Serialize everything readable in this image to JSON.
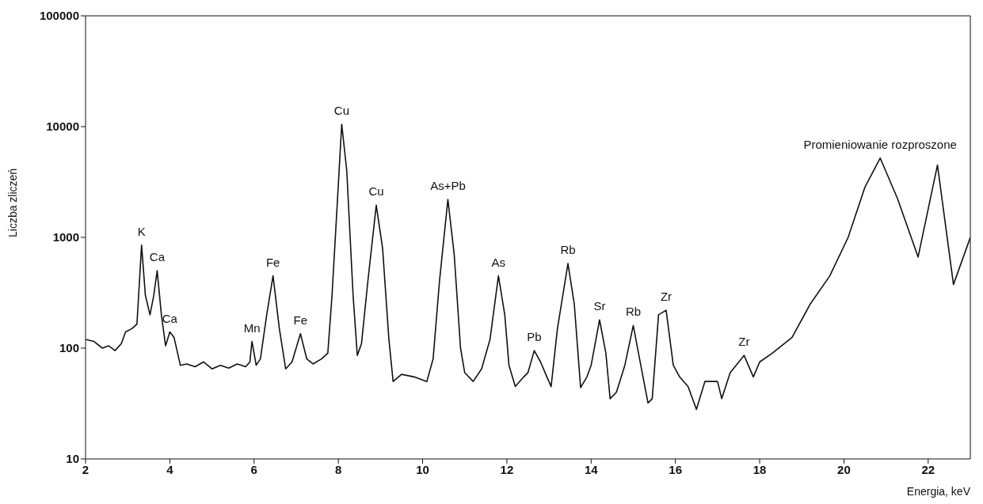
{
  "chart_data": {
    "type": "line",
    "xlabel": "Energia, keV",
    "ylabel": "Liczba zliczeń",
    "log": "y",
    "xlim": [
      2,
      23
    ],
    "xticks": [
      2,
      4,
      6,
      8,
      10,
      12,
      14,
      16,
      18,
      20,
      22
    ],
    "ylim": [
      10,
      100000
    ],
    "yticks": [
      10,
      100,
      1000,
      10000,
      100000
    ],
    "marker": "none",
    "line_style": "solid",
    "series": [
      {
        "color": "#111111",
        "x": [
          2,
          2.2,
          2.4,
          2.55,
          2.7,
          2.85,
          2.95,
          3.1,
          3.22,
          3.33,
          3.42,
          3.53,
          3.62,
          3.7,
          3.8,
          3.9,
          4.0,
          4.1,
          4.25,
          4.4,
          4.6,
          4.8,
          5.0,
          5.2,
          5.4,
          5.6,
          5.8,
          5.9,
          5.95,
          6.05,
          6.15,
          6.3,
          6.45,
          6.6,
          6.75,
          6.9,
          7.1,
          7.25,
          7.4,
          7.6,
          7.75,
          7.85,
          8.0,
          8.08,
          8.2,
          8.35,
          8.45,
          8.55,
          8.7,
          8.9,
          9.05,
          9.2,
          9.3,
          9.5,
          9.8,
          10.1,
          10.25,
          10.4,
          10.6,
          10.75,
          10.9,
          11.0,
          11.2,
          11.4,
          11.6,
          11.8,
          11.95,
          12.05,
          12.2,
          12.4,
          12.5,
          12.65,
          12.8,
          12.95,
          13.05,
          13.2,
          13.45,
          13.6,
          13.75,
          13.9,
          14.0,
          14.2,
          14.35,
          14.45,
          14.6,
          14.8,
          15.0,
          15.15,
          15.35,
          15.45,
          15.6,
          15.78,
          15.95,
          16.1,
          16.3,
          16.5,
          16.7,
          17.0,
          17.1,
          17.3,
          17.63,
          17.85,
          18.0,
          18.3,
          18.77,
          19.2,
          19.66,
          20.1,
          20.5,
          20.86,
          21.27,
          21.76,
          22.22,
          22.6,
          23
        ],
        "values": [
          120,
          115,
          100,
          105,
          95,
          110,
          140,
          150,
          165,
          850,
          300,
          200,
          300,
          500,
          200,
          105,
          140,
          125,
          70,
          72,
          68,
          75,
          65,
          70,
          66,
          72,
          68,
          75,
          115,
          70,
          80,
          200,
          450,
          150,
          65,
          75,
          135,
          80,
          72,
          80,
          90,
          300,
          3000,
          10500,
          4000,
          300,
          86,
          110,
          400,
          1950,
          800,
          120,
          50,
          58,
          55,
          50,
          80,
          400,
          2200,
          700,
          100,
          60,
          50,
          65,
          120,
          450,
          200,
          70,
          45,
          55,
          60,
          95,
          75,
          55,
          45,
          150,
          580,
          250,
          44,
          55,
          70,
          180,
          90,
          35,
          40,
          70,
          160,
          80,
          32,
          35,
          200,
          220,
          70,
          55,
          45,
          28,
          50,
          50,
          35,
          60,
          86,
          55,
          75,
          90,
          125,
          250,
          446,
          1000,
          2850,
          5200,
          2250,
          665,
          4500,
          375,
          1000
        ]
      }
    ],
    "annotations": [
      {
        "text": "K",
        "x": 3.33,
        "y": 850
      },
      {
        "text": "Ca",
        "x": 3.7,
        "y": 500
      },
      {
        "text": "Ca",
        "x": 4.0,
        "y": 140
      },
      {
        "text": "Mn",
        "x": 5.95,
        "y": 115
      },
      {
        "text": "Fe",
        "x": 6.45,
        "y": 450
      },
      {
        "text": "Fe",
        "x": 7.1,
        "y": 135
      },
      {
        "text": "Cu",
        "x": 8.08,
        "y": 10500
      },
      {
        "text": "Cu",
        "x": 8.9,
        "y": 1950
      },
      {
        "text": "As+Pb",
        "x": 10.6,
        "y": 2200
      },
      {
        "text": "As",
        "x": 11.8,
        "y": 450
      },
      {
        "text": "Pb",
        "x": 12.65,
        "y": 95
      },
      {
        "text": "Rb",
        "x": 13.45,
        "y": 580
      },
      {
        "text": "Sr",
        "x": 14.2,
        "y": 180
      },
      {
        "text": "Rb",
        "x": 15.0,
        "y": 160
      },
      {
        "text": "Zr",
        "x": 15.78,
        "y": 220
      },
      {
        "text": "Zr",
        "x": 17.63,
        "y": 86
      },
      {
        "text": "Promieniowanie rozproszone",
        "x": 20.86,
        "y": 5200
      }
    ]
  }
}
